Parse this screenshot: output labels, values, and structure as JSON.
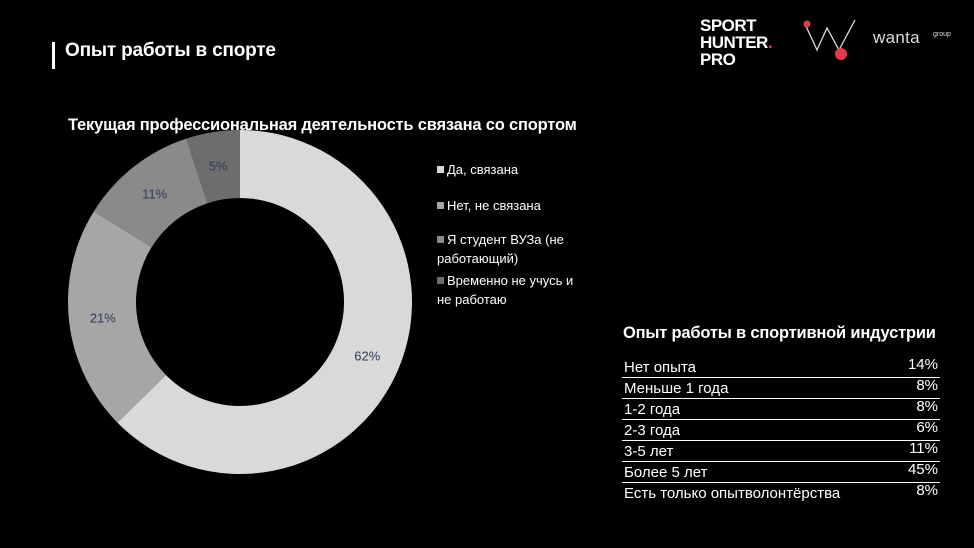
{
  "page": {
    "title": "Опыт работы в спорте"
  },
  "logos": {
    "sporthunter_line1": "SPORT",
    "sporthunter_line2": "HUNTER",
    "sporthunter_dot": ".",
    "sporthunter_line3": "PRO",
    "wanta": "wanta",
    "wanta_group": "group",
    "accent": "#e53a4e"
  },
  "chart_data": {
    "type": "pie",
    "donut": true,
    "title": "Текущая профессиональная деятельность связана со спортом",
    "categories": [
      "Да, связана",
      "Нет, не связана",
      "Я студент ВУЗа (не работающий)",
      "Временно не учусь и не работаю"
    ],
    "values": [
      62,
      21,
      11,
      5
    ],
    "value_labels": [
      "62%",
      "21%",
      "11%",
      "5%"
    ],
    "colors": [
      "#d9d9d9",
      "#a6a6a6",
      "#8a8a8a",
      "#6d6d6d"
    ],
    "legend_position": "right",
    "legend_lines": [
      [
        "Да, связана"
      ],
      [
        "Нет, не связана"
      ],
      [
        "Я студент ВУЗа (не",
        "работающий)"
      ],
      [
        "Временно не учусь и",
        "не работаю"
      ]
    ]
  },
  "experience_table": {
    "title": "Опыт работы в спортивной индустрии",
    "rows": [
      {
        "label": "Нет опыта",
        "value": "14%"
      },
      {
        "label": "Меньше 1 года",
        "value": "8%"
      },
      {
        "label": "1-2 года",
        "value": "8%"
      },
      {
        "label": "2-3 года",
        "value": "6%"
      },
      {
        "label": "3-5 лет",
        "value": "11%"
      },
      {
        "label": "Более 5 лет",
        "value": "45%"
      },
      {
        "label": "Есть только опытволонтёрства",
        "value": "8%"
      }
    ]
  }
}
